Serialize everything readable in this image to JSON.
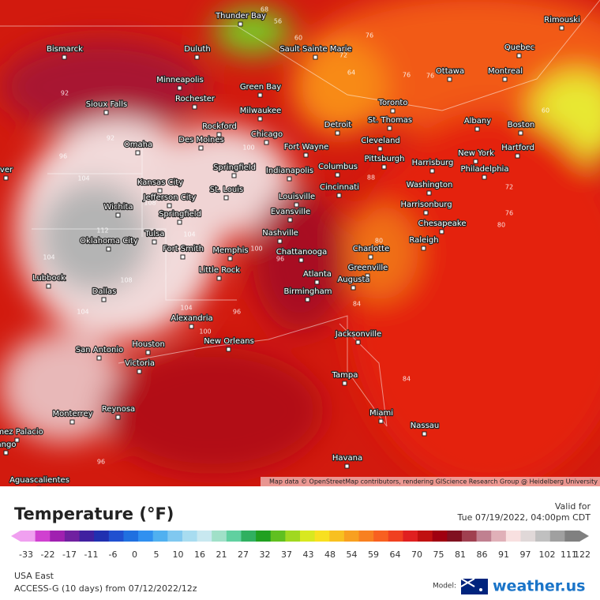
{
  "map": {
    "cities": [
      "Thunder Bay",
      "Sault Sainte Marie",
      "Rimouski",
      "Bismarck",
      "Duluth",
      "Quebec",
      "Ottawa",
      "Montreal",
      "Minneapolis",
      "Green Bay",
      "Toronto",
      "Sioux Falls",
      "Rochester",
      "Milwaukee",
      "St. Thomas",
      "Albany",
      "Boston",
      "Rockford",
      "Detroit",
      "Omaha",
      "Des Moines",
      "Chicago",
      "Fort Wayne",
      "Cleveland",
      "Hartford",
      "New York",
      "Springfield",
      "Indianapolis",
      "Columbus",
      "Pittsburgh",
      "Harrisburg",
      "Philadelphia",
      "Kansas City",
      "St. Louis",
      "Jefferson City",
      "Louisville",
      "Cincinnati",
      "Washington",
      "Wichita",
      "Springfield",
      "Evansville",
      "Harrisonburg",
      "Chesapeake",
      "Oklahoma City",
      "Tulsa",
      "Nashville",
      "Raleigh",
      "Fort Smith",
      "Memphis",
      "Chattanooga",
      "Charlotte",
      "Little Rock",
      "Greenville",
      "Atlanta",
      "Augusta",
      "Lubbock",
      "Dallas",
      "Birmingham",
      "Alexandria",
      "Jacksonville",
      "New Orleans",
      "Houston",
      "San Antonio",
      "Victoria",
      "Tampa",
      "Reynosa",
      "Monterrey",
      "Miami",
      "Nassau",
      "ómez Palacio",
      "ango",
      "ver",
      "Havana",
      "Aguascalientes"
    ],
    "contour_labels": [
      68,
      56,
      60,
      64,
      72,
      76,
      76,
      60,
      80,
      92,
      96,
      104,
      100,
      108,
      112,
      104,
      100,
      96,
      104,
      100,
      104,
      84,
      80,
      76,
      72,
      96,
      84,
      96,
      88,
      76,
      104,
      108,
      92
    ],
    "attribution": "Map data © OpenStreetMap contributors, rendering GIScience Research Group @ Heidelberg University"
  },
  "legend": {
    "title": "Temperature (°F)",
    "ticks": [
      -33,
      -22,
      -17,
      -11,
      -6,
      0,
      5,
      10,
      16,
      21,
      27,
      32,
      37,
      43,
      48,
      54,
      59,
      64,
      70,
      75,
      81,
      86,
      91,
      97,
      102,
      111,
      122
    ],
    "colors": [
      "#f0a0f0",
      "#d040d0",
      "#a020b0",
      "#7020a0",
      "#4020a0",
      "#2030b0",
      "#2050d0",
      "#2070e0",
      "#3090f0",
      "#50b0f0",
      "#80c8f0",
      "#a8dcf0",
      "#c8e8f0",
      "#a0e0c8",
      "#60d0a0",
      "#30b060",
      "#20a020",
      "#60c020",
      "#a0d820",
      "#d8e820",
      "#f8e020",
      "#f8c020",
      "#f8a020",
      "#f88020",
      "#f86020",
      "#f04020",
      "#e02020",
      "#c01010",
      "#a00010",
      "#801020",
      "#a04050",
      "#c08090",
      "#e0b0b8",
      "#f8e0e0",
      "#e0d8d8",
      "#c0c0c0",
      "#a0a0a0",
      "#808080"
    ]
  },
  "valid": {
    "label": "Valid for",
    "time": "Tue 07/19/2022, 04:00pm CDT"
  },
  "footer": {
    "region": "USA East",
    "model_run": "ACCESS-G (10 days) from 07/12/2022/12z",
    "model_label": "Model:",
    "brand": "weather.us"
  }
}
